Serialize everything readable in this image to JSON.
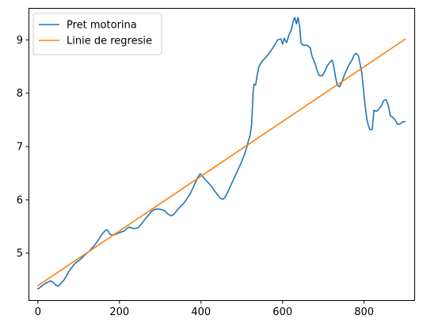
{
  "chart_data": {
    "type": "line",
    "title": "",
    "xlabel": "",
    "ylabel": "",
    "xlim": [
      -23,
      923
    ],
    "ylim": [
      4.12,
      9.6
    ],
    "x_ticks": [
      0,
      200,
      400,
      600,
      800
    ],
    "y_ticks": [
      5,
      6,
      7,
      8,
      9
    ],
    "grid": false,
    "legend_position": "top-left",
    "series": [
      {
        "name": "Pret motorina",
        "color": "#1f77b4",
        "kind": "line",
        "points": [
          [
            0,
            4.33
          ],
          [
            6,
            4.36
          ],
          [
            12,
            4.4
          ],
          [
            18,
            4.43
          ],
          [
            25,
            4.46
          ],
          [
            32,
            4.48
          ],
          [
            38,
            4.45
          ],
          [
            44,
            4.4
          ],
          [
            50,
            4.38
          ],
          [
            55,
            4.42
          ],
          [
            60,
            4.46
          ],
          [
            66,
            4.52
          ],
          [
            72,
            4.6
          ],
          [
            78,
            4.68
          ],
          [
            84,
            4.74
          ],
          [
            90,
            4.8
          ],
          [
            96,
            4.84
          ],
          [
            102,
            4.87
          ],
          [
            108,
            4.91
          ],
          [
            114,
            4.96
          ],
          [
            120,
            5.0
          ],
          [
            126,
            5.04
          ],
          [
            132,
            5.09
          ],
          [
            138,
            5.14
          ],
          [
            144,
            5.2
          ],
          [
            150,
            5.27
          ],
          [
            156,
            5.34
          ],
          [
            162,
            5.4
          ],
          [
            168,
            5.44
          ],
          [
            172,
            5.42
          ],
          [
            176,
            5.36
          ],
          [
            182,
            5.34
          ],
          [
            190,
            5.35
          ],
          [
            198,
            5.38
          ],
          [
            206,
            5.4
          ],
          [
            212,
            5.42
          ],
          [
            218,
            5.46
          ],
          [
            224,
            5.49
          ],
          [
            230,
            5.47
          ],
          [
            238,
            5.46
          ],
          [
            246,
            5.48
          ],
          [
            254,
            5.55
          ],
          [
            262,
            5.63
          ],
          [
            270,
            5.7
          ],
          [
            278,
            5.78
          ],
          [
            286,
            5.82
          ],
          [
            294,
            5.83
          ],
          [
            302,
            5.82
          ],
          [
            310,
            5.8
          ],
          [
            318,
            5.74
          ],
          [
            326,
            5.7
          ],
          [
            332,
            5.72
          ],
          [
            338,
            5.77
          ],
          [
            344,
            5.83
          ],
          [
            350,
            5.88
          ],
          [
            356,
            5.92
          ],
          [
            362,
            5.98
          ],
          [
            368,
            6.05
          ],
          [
            374,
            6.12
          ],
          [
            380,
            6.22
          ],
          [
            386,
            6.32
          ],
          [
            392,
            6.42
          ],
          [
            398,
            6.49
          ],
          [
            404,
            6.44
          ],
          [
            410,
            6.38
          ],
          [
            418,
            6.32
          ],
          [
            426,
            6.25
          ],
          [
            434,
            6.16
          ],
          [
            442,
            6.08
          ],
          [
            448,
            6.03
          ],
          [
            454,
            6.01
          ],
          [
            458,
            6.04
          ],
          [
            464,
            6.12
          ],
          [
            470,
            6.22
          ],
          [
            476,
            6.32
          ],
          [
            482,
            6.42
          ],
          [
            488,
            6.52
          ],
          [
            494,
            6.62
          ],
          [
            500,
            6.72
          ],
          [
            506,
            6.84
          ],
          [
            512,
            6.98
          ],
          [
            516,
            7.1
          ],
          [
            520,
            7.2
          ],
          [
            524,
            7.4
          ],
          [
            526,
            7.7
          ],
          [
            528,
            8.05
          ],
          [
            530,
            8.17
          ],
          [
            534,
            8.15
          ],
          [
            538,
            8.35
          ],
          [
            542,
            8.5
          ],
          [
            548,
            8.58
          ],
          [
            556,
            8.65
          ],
          [
            564,
            8.72
          ],
          [
            572,
            8.8
          ],
          [
            580,
            8.9
          ],
          [
            588,
            9.0
          ],
          [
            596,
            9.02
          ],
          [
            600,
            8.92
          ],
          [
            604,
            9.03
          ],
          [
            610,
            8.95
          ],
          [
            616,
            9.1
          ],
          [
            622,
            9.2
          ],
          [
            626,
            9.35
          ],
          [
            630,
            9.42
          ],
          [
            634,
            9.3
          ],
          [
            638,
            9.42
          ],
          [
            642,
            9.25
          ],
          [
            645,
            8.95
          ],
          [
            650,
            8.9
          ],
          [
            660,
            8.9
          ],
          [
            668,
            8.85
          ],
          [
            672,
            8.7
          ],
          [
            680,
            8.55
          ],
          [
            686,
            8.4
          ],
          [
            690,
            8.33
          ],
          [
            698,
            8.33
          ],
          [
            704,
            8.42
          ],
          [
            710,
            8.52
          ],
          [
            716,
            8.58
          ],
          [
            722,
            8.62
          ],
          [
            726,
            8.48
          ],
          [
            730,
            8.3
          ],
          [
            734,
            8.15
          ],
          [
            740,
            8.12
          ],
          [
            746,
            8.22
          ],
          [
            752,
            8.35
          ],
          [
            758,
            8.45
          ],
          [
            764,
            8.55
          ],
          [
            770,
            8.62
          ],
          [
            776,
            8.72
          ],
          [
            780,
            8.75
          ],
          [
            786,
            8.7
          ],
          [
            790,
            8.55
          ],
          [
            794,
            8.4
          ],
          [
            798,
            8.1
          ],
          [
            802,
            7.8
          ],
          [
            806,
            7.55
          ],
          [
            810,
            7.4
          ],
          [
            814,
            7.32
          ],
          [
            820,
            7.32
          ],
          [
            824,
            7.68
          ],
          [
            830,
            7.66
          ],
          [
            836,
            7.7
          ],
          [
            842,
            7.76
          ],
          [
            848,
            7.86
          ],
          [
            854,
            7.88
          ],
          [
            860,
            7.75
          ],
          [
            864,
            7.58
          ],
          [
            870,
            7.55
          ],
          [
            876,
            7.5
          ],
          [
            882,
            7.42
          ],
          [
            888,
            7.42
          ],
          [
            894,
            7.46
          ],
          [
            900,
            7.47
          ]
        ]
      },
      {
        "name": "Linie de regresie",
        "color": "#ff7f0e",
        "kind": "line",
        "points": [
          [
            0,
            4.39
          ],
          [
            900,
            9.01
          ]
        ]
      }
    ]
  }
}
